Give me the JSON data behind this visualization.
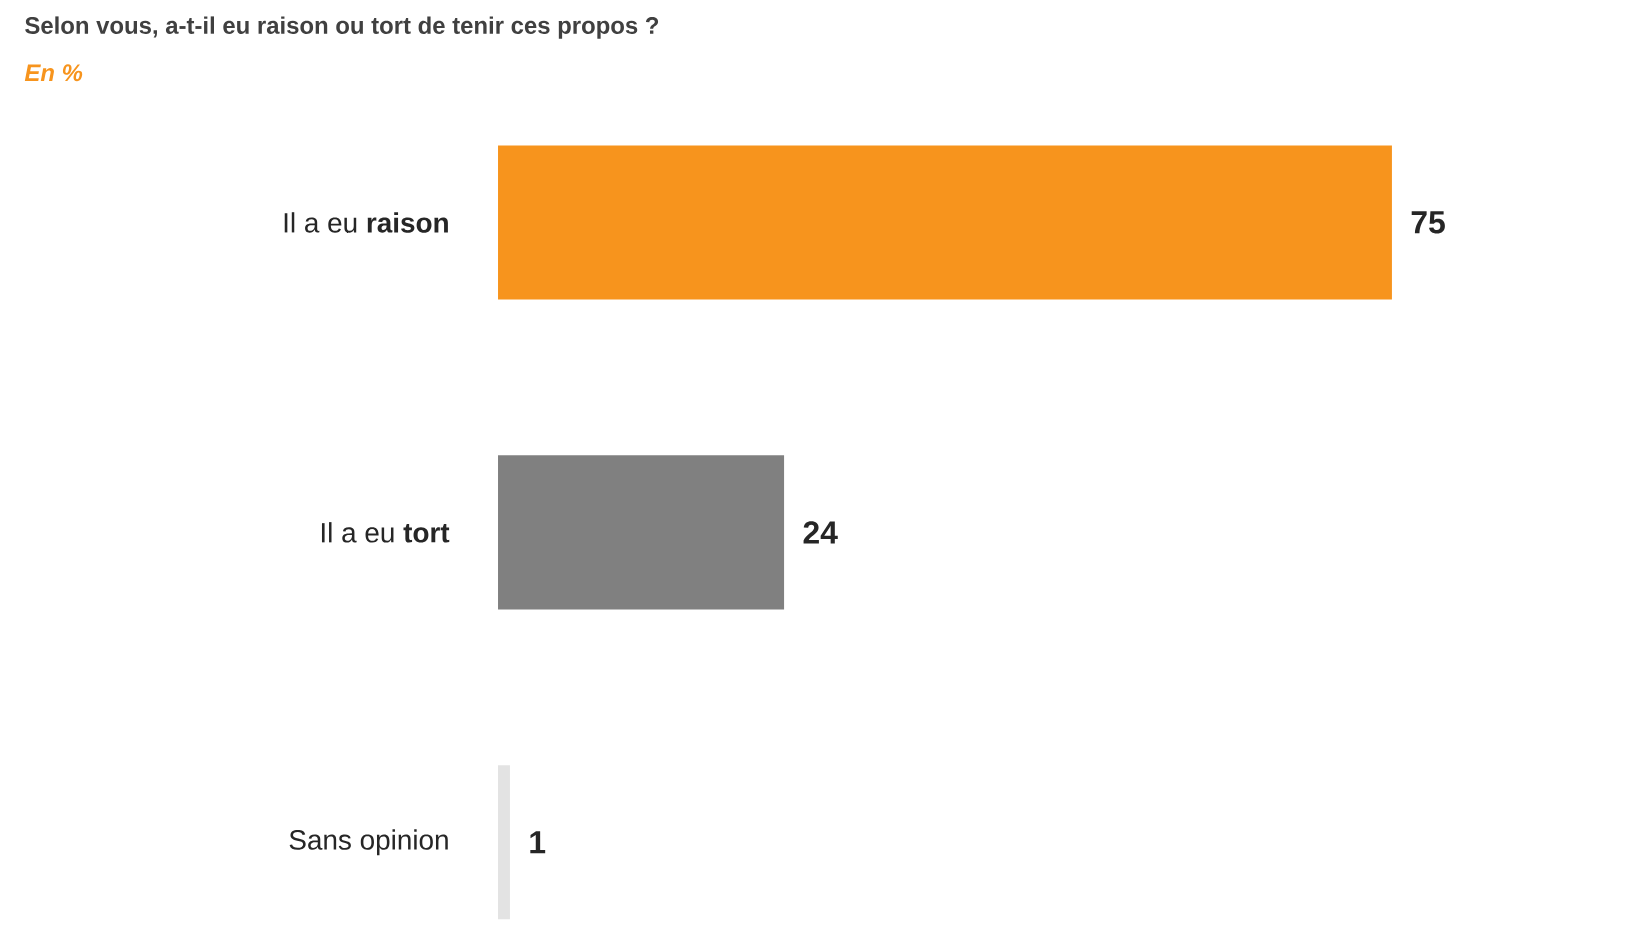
{
  "chart_data": {
    "type": "bar",
    "orientation": "horizontal",
    "title": "Selon vous, a-t-il eu raison ou tort de tenir ces propos ?",
    "subtitle": "En %",
    "categories": [
      "Il a eu **raison**",
      "Il a eu **tort**",
      "Sans opinion"
    ],
    "values": [
      75,
      24,
      1
    ],
    "colors": [
      "#f7941d",
      "#808080",
      "#e3e3e3"
    ],
    "data_labels": true
  }
}
